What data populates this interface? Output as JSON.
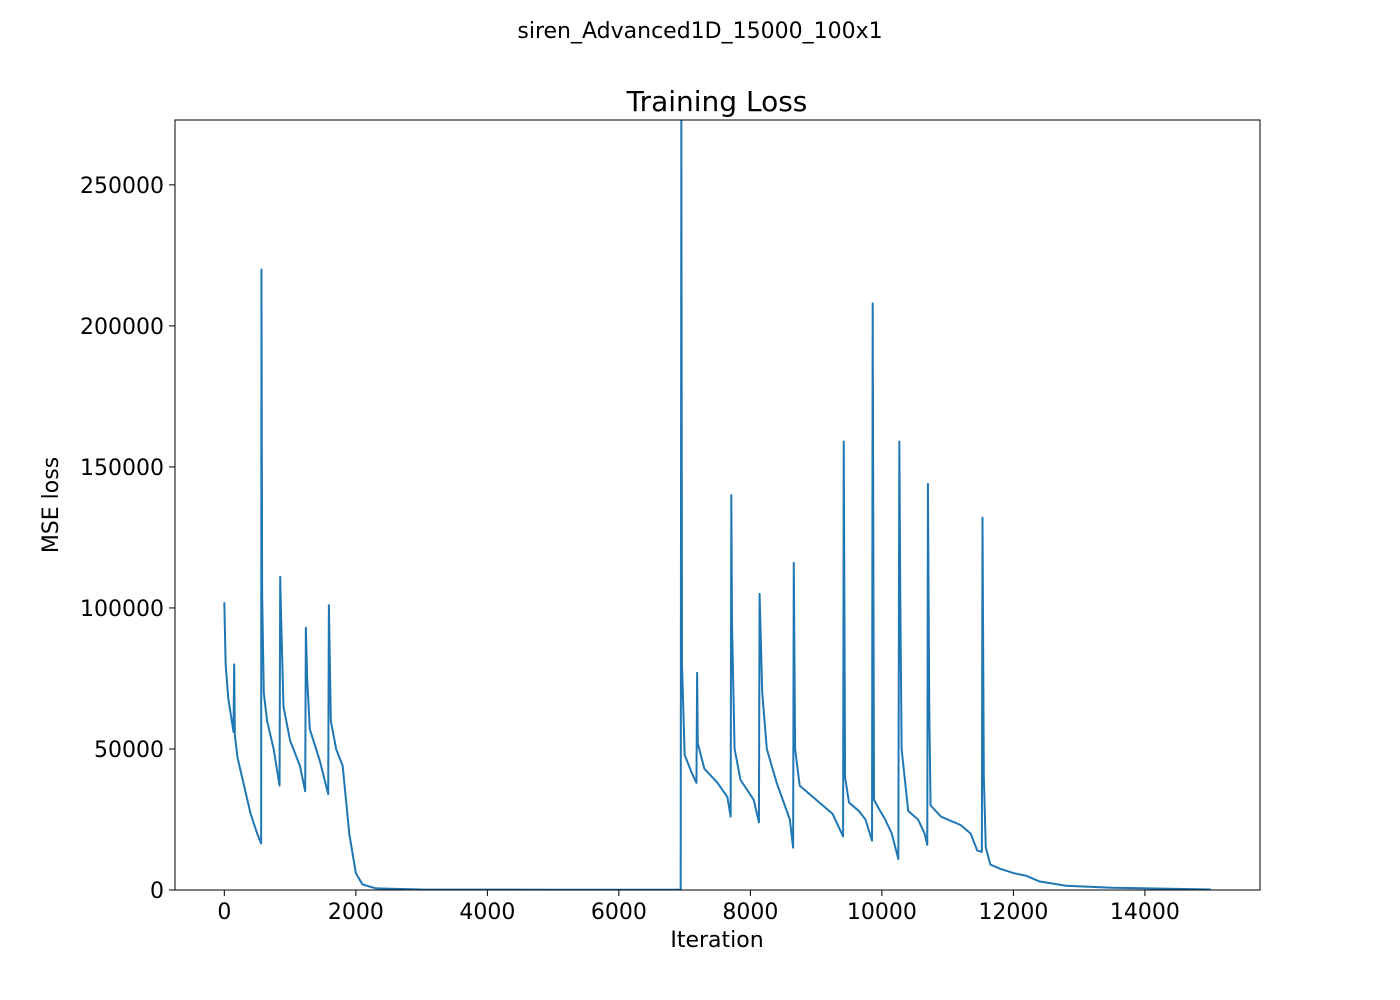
{
  "chart_data": {
    "type": "line",
    "suptitle": "siren_Advanced1D_15000_100x1",
    "title": "Training Loss",
    "xlabel": "Iteration",
    "ylabel": "MSE loss",
    "color": "#1f77b4",
    "xlim": [
      -750,
      15750
    ],
    "ylim": [
      0,
      273000
    ],
    "xticks": [
      0,
      2000,
      4000,
      6000,
      8000,
      10000,
      12000,
      14000
    ],
    "yticks": [
      0,
      50000,
      100000,
      150000,
      200000,
      250000
    ],
    "x": [
      0,
      20,
      60,
      100,
      140,
      150,
      160,
      200,
      300,
      400,
      500,
      560,
      565,
      575,
      600,
      650,
      750,
      840,
      850,
      860,
      900,
      1000,
      1150,
      1230,
      1240,
      1260,
      1300,
      1450,
      1580,
      1590,
      1620,
      1700,
      1800,
      1900,
      2000,
      2100,
      2300,
      3000,
      5000,
      6940,
      6950,
      6960,
      7000,
      7100,
      7180,
      7190,
      7200,
      7300,
      7500,
      7650,
      7700,
      7710,
      7720,
      7760,
      7850,
      8050,
      8130,
      8140,
      8180,
      8250,
      8400,
      8600,
      8650,
      8660,
      8680,
      8750,
      9000,
      9250,
      9350,
      9410,
      9420,
      9440,
      9500,
      9650,
      9750,
      9850,
      9860,
      9880,
      9950,
      10050,
      10150,
      10250,
      10265,
      10280,
      10300,
      10400,
      10550,
      10650,
      10690,
      10700,
      10720,
      10740,
      10900,
      11200,
      11350,
      11450,
      11520,
      11530,
      11550,
      11580,
      11650,
      11800,
      12000,
      12200,
      12400,
      12800,
      13500,
      15000
    ],
    "values": [
      102000,
      80000,
      68000,
      62000,
      56000,
      80000,
      55000,
      47000,
      37000,
      27000,
      20000,
      16500,
      220000,
      105000,
      70000,
      60000,
      50000,
      37000,
      111000,
      100000,
      65000,
      53000,
      44000,
      35000,
      93000,
      75000,
      57000,
      46000,
      34000,
      101000,
      60000,
      50000,
      44000,
      20000,
      6000,
      2000,
      600,
      200,
      100,
      100,
      273000,
      80000,
      48000,
      42000,
      38000,
      77000,
      52000,
      43000,
      38000,
      33000,
      26000,
      140000,
      95000,
      50000,
      39000,
      32000,
      24000,
      105000,
      70000,
      50000,
      38000,
      25000,
      15000,
      116000,
      50000,
      37000,
      32000,
      27000,
      22000,
      19000,
      159000,
      40000,
      31000,
      28000,
      25000,
      17500,
      208000,
      32000,
      29000,
      25000,
      20000,
      11000,
      159000,
      103000,
      50000,
      28000,
      25000,
      20000,
      16000,
      144000,
      65000,
      30000,
      26000,
      23000,
      20000,
      14000,
      13500,
      132000,
      40000,
      15000,
      9000,
      7500,
      6000,
      5000,
      3000,
      1500,
      800,
      200
    ]
  }
}
